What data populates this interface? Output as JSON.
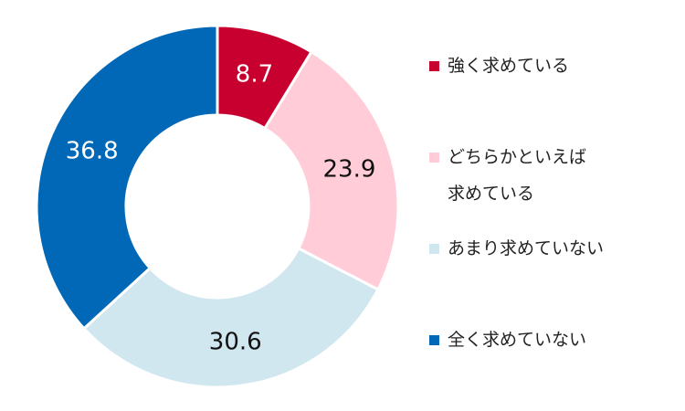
{
  "chart_data": {
    "type": "pie",
    "donut": true,
    "categories": [
      "強く求めている",
      "どちらかといえば\n求めている",
      "あまり求めていない",
      "全く求めていない"
    ],
    "values": [
      8.7,
      23.9,
      30.6,
      36.8
    ],
    "data_labels": [
      "8.7",
      "23.9",
      "30.6",
      "36.8"
    ],
    "colors": [
      "#c8002f",
      "#ffccd8",
      "#d0e7ef",
      "#0068b7"
    ],
    "label_colors": [
      "#ffffff",
      "#111111",
      "#111111",
      "#ffffff"
    ],
    "start_angle": "12 o'clock",
    "direction": "clockwise",
    "legend_position": "right"
  }
}
